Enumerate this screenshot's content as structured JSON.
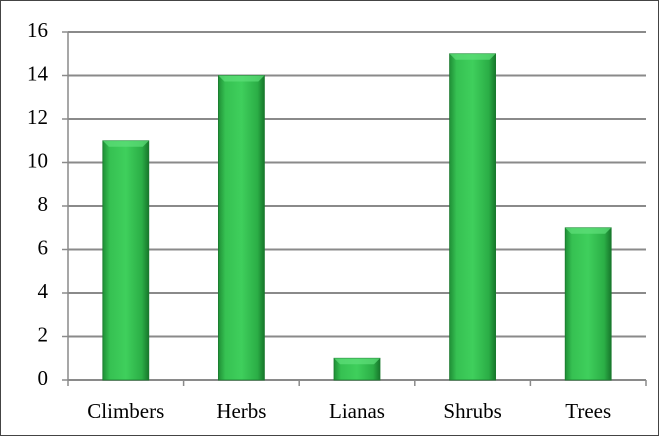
{
  "chart_data": {
    "type": "bar",
    "categories": [
      "Climbers",
      "Herbs",
      "Lianas",
      "Shrubs",
      "Trees"
    ],
    "values": [
      11,
      14,
      1,
      15,
      7
    ],
    "color": "#2fb34a",
    "ylim": [
      0,
      16
    ],
    "yticks": [
      0,
      2,
      4,
      6,
      8,
      10,
      12,
      14,
      16
    ],
    "grid": true
  }
}
